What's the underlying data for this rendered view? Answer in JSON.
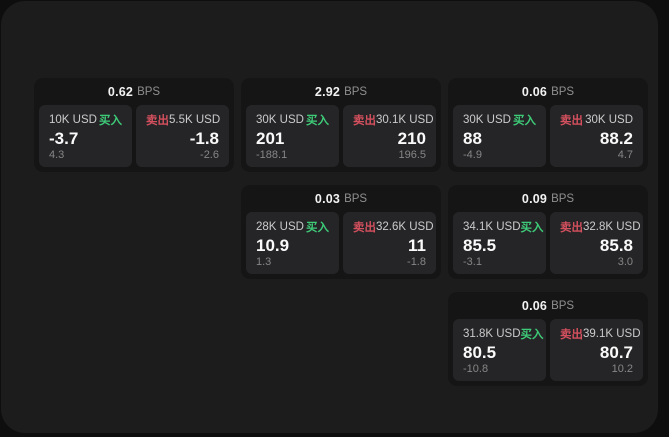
{
  "labels": {
    "buy": "买入",
    "sell": "卖出",
    "bps_unit": "BPS"
  },
  "colors": {
    "background": "#0e0e0f",
    "panel": "#1c1c1d",
    "card": "#151516",
    "subpanel": "#252527",
    "buy_green": "#3ecb78",
    "sell_red": "#d4505e"
  },
  "cards": [
    {
      "bps": "0.62",
      "buy": {
        "amount": "10K USD",
        "price": "-3.7",
        "delta": "4.3"
      },
      "sell": {
        "amount": "5.5K USD",
        "price": "-1.8",
        "delta": "-2.6"
      }
    },
    {
      "bps": "2.92",
      "buy": {
        "amount": "30K USD",
        "price": "201",
        "delta": "-188.1"
      },
      "sell": {
        "amount": "30.1K USD",
        "price": "210",
        "delta": "196.5"
      }
    },
    {
      "bps": "0.06",
      "buy": {
        "amount": "30K USD",
        "price": "88",
        "delta": "-4.9"
      },
      "sell": {
        "amount": "30K USD",
        "price": "88.2",
        "delta": "4.7"
      }
    },
    {
      "bps": "0.03",
      "buy": {
        "amount": "28K USD",
        "price": "10.9",
        "delta": "1.3"
      },
      "sell": {
        "amount": "32.6K USD",
        "price": "11",
        "delta": "-1.8"
      }
    },
    {
      "bps": "0.09",
      "buy": {
        "amount": "34.1K USD",
        "price": "85.5",
        "delta": "-3.1"
      },
      "sell": {
        "amount": "32.8K USD",
        "price": "85.8",
        "delta": "3.0"
      }
    },
    {
      "bps": "0.06",
      "buy": {
        "amount": "31.8K USD",
        "price": "80.5",
        "delta": "-10.8"
      },
      "sell": {
        "amount": "39.1K USD",
        "price": "80.7",
        "delta": "10.2"
      }
    }
  ]
}
